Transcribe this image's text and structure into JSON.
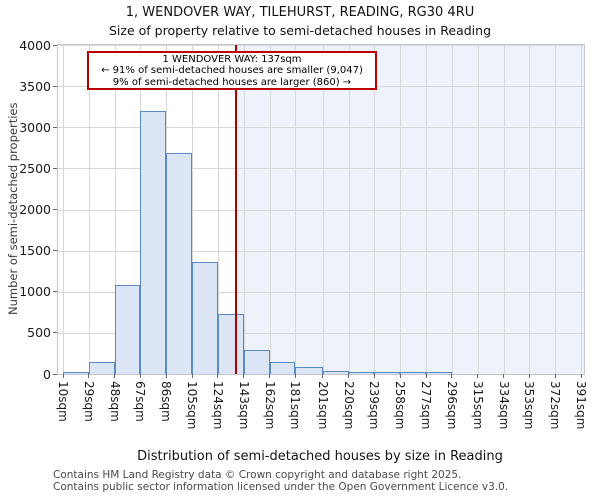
{
  "title": "1, WENDOVER WAY, TILEHURST, READING, RG30 4RU",
  "subtitle": "Size of property relative to semi-detached houses in Reading",
  "annotation": {
    "line1": "1 WENDOVER WAY: 137sqm",
    "line2": "← 91% of semi-detached houses are smaller (9,047)",
    "line3": "9% of semi-detached houses are larger (860) →"
  },
  "chart_data": {
    "type": "bar",
    "bin_edges_sqm": [
      10,
      29,
      48,
      67,
      86,
      105,
      124,
      143,
      162,
      181,
      201,
      220,
      239,
      258,
      277,
      296,
      315,
      334,
      353,
      372,
      391
    ],
    "tick_labels": [
      "10sqm",
      "29sqm",
      "48sqm",
      "67sqm",
      "86sqm",
      "105sqm",
      "124sqm",
      "143sqm",
      "162sqm",
      "181sqm",
      "201sqm",
      "220sqm",
      "239sqm",
      "258sqm",
      "277sqm",
      "296sqm",
      "315sqm",
      "334sqm",
      "353sqm",
      "372sqm",
      "391sqm"
    ],
    "values": [
      10,
      150,
      1080,
      3200,
      2690,
      1360,
      730,
      290,
      140,
      80,
      35,
      15,
      8,
      6,
      5,
      0,
      0,
      0,
      0,
      0
    ],
    "marker_sqm": 137,
    "xlabel": "Distribution of semi-detached houses by size in Reading",
    "ylabel": "Number of semi-detached properties",
    "ylim": [
      0,
      4000
    ],
    "ytick_step": 500,
    "grid": true,
    "legend": "none",
    "colors": {
      "bar_fill": "#dbe5f5",
      "bar_edge": "#5a8ac6",
      "marker_line": "#b00000",
      "annotation_border": "#bb0000",
      "shade_right_of_marker": "#eef3fb",
      "gridline": "#d7d7d7"
    }
  },
  "footer": {
    "line1": "Contains HM Land Registry data © Crown copyright and database right 2025.",
    "line2": "Contains public sector information licensed under the Open Government Licence v3.0."
  }
}
